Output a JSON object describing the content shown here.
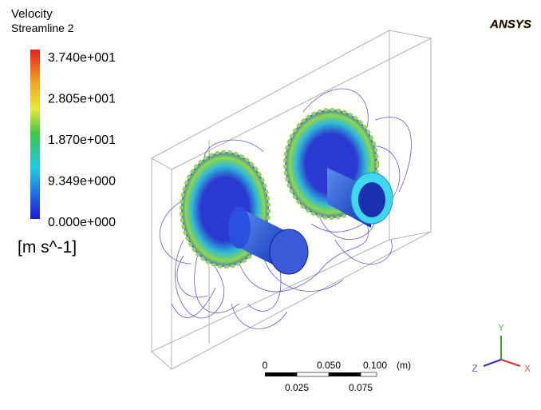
{
  "header": {
    "title": "Velocity",
    "subtitle": "Streamline 2",
    "logo": "ANSYS"
  },
  "legend": {
    "labels": [
      "3.740e+001",
      "2.805e+001",
      "1.870e+001",
      "9.349e+000",
      "0.000e+000"
    ],
    "unit": "[m s^-1]"
  },
  "scale_bar": {
    "top_labels": [
      "0",
      "0.050",
      "0.100"
    ],
    "unit": "(m)",
    "bottom_labels": [
      "0.025",
      "0.075"
    ]
  },
  "triad": {
    "y": "Y",
    "z": "Z",
    "x": "X"
  }
}
